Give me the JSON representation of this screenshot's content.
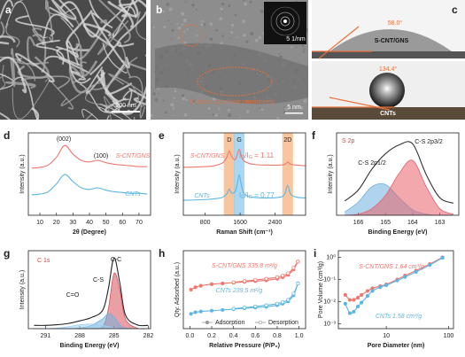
{
  "images": [
    {
      "label": "a",
      "scale_bar": "200 nm"
    },
    {
      "label": "b",
      "scale_bar": "5 nm",
      "inset_scale_bar": "5 1/nm",
      "annotation": "S-doped graphene nanosheets"
    },
    {
      "label": "c",
      "angles": [
        "58.0°",
        "134.4°"
      ],
      "samples": [
        "S-CNT/GNS",
        "CNTs"
      ]
    }
  ],
  "chart_data": [
    {
      "type": "line",
      "panel": "d",
      "xlabel": "2θ (Degree)",
      "ylabel": "Intensity (a.u.)",
      "xlim": [
        3,
        77
      ],
      "ylim": [
        0,
        10.5
      ],
      "xticks": [
        10,
        20,
        30,
        40,
        50,
        60,
        70
      ],
      "x": [
        5,
        10,
        15,
        20,
        25,
        30,
        35,
        40,
        45,
        50,
        55,
        60,
        65,
        70,
        75
      ],
      "series": [
        {
          "name": "S-CNT/GNS",
          "color": "#f0766e",
          "values": [
            6.0,
            6.1,
            6.4,
            7.4,
            8.9,
            7.8,
            7.0,
            6.8,
            7.0,
            6.7,
            6.5,
            6.4,
            6.3,
            6.2,
            6.2
          ]
        },
        {
          "name": "CNTs",
          "color": "#5bb6e6",
          "values": [
            2.6,
            2.7,
            3.0,
            4.0,
            5.2,
            4.3,
            3.5,
            3.3,
            3.5,
            3.2,
            3.0,
            2.9,
            2.8,
            2.8,
            2.7
          ]
        }
      ],
      "annotations": [
        {
          "text": "(002)",
          "color": "#222"
        },
        {
          "text": "(100)",
          "color": "#222"
        }
      ]
    },
    {
      "type": "line",
      "panel": "e",
      "xlabel": "Raman Shift (cm⁻¹)",
      "ylabel": "Intensity (a.u.)",
      "xlim": [
        300,
        3100
      ],
      "ylim": [
        0,
        11
      ],
      "xticks": [
        800,
        1600,
        2400
      ],
      "x": [
        300,
        800,
        1000,
        1200,
        1300,
        1350,
        1400,
        1480,
        1530,
        1580,
        1630,
        1700,
        1900,
        2200,
        2500,
        2620,
        2690,
        2760,
        2900,
        3100
      ],
      "bands": [
        {
          "x": 1350,
          "label": "D",
          "color": "#f7b27c"
        },
        {
          "x": 1580,
          "label": "G",
          "color": "#8ccaf0"
        },
        {
          "x": 2690,
          "label": "2D",
          "color": "#f7b27c"
        }
      ],
      "series": [
        {
          "name": "S-CNT/GNS",
          "color": "#f0766e",
          "values": [
            6.4,
            6.5,
            6.6,
            7.0,
            7.8,
            8.6,
            7.9,
            7.4,
            8.0,
            8.8,
            7.9,
            7.2,
            6.8,
            6.7,
            6.7,
            6.8,
            7.1,
            6.8,
            6.7,
            6.6
          ]
        },
        {
          "name": "CNTs",
          "color": "#5bb6e6",
          "values": [
            2.0,
            2.1,
            2.2,
            2.4,
            2.9,
            3.5,
            3.0,
            3.1,
            4.0,
            5.4,
            4.0,
            2.8,
            2.4,
            2.3,
            2.4,
            2.8,
            4.0,
            2.8,
            2.4,
            2.3
          ]
        }
      ],
      "ratio_labels": [
        [
          "I",
          "D",
          "/I",
          "G",
          " = 1.11"
        ],
        [
          "I",
          "D",
          "/I",
          "G",
          " = 0.77"
        ]
      ]
    },
    {
      "type": "line",
      "panel": "f",
      "title": "S 2p",
      "xlabel": "Binding Energy (eV)",
      "ylabel": "Intensity (a.u.)",
      "xlim": [
        166.8,
        162.3
      ],
      "ylim": [
        0,
        7.5
      ],
      "xticks": [
        166,
        165,
        164,
        163
      ],
      "x": [
        166.5,
        166,
        165.5,
        165,
        164.5,
        164,
        163.5,
        163,
        162.5
      ],
      "series": [
        {
          "color": "#333333",
          "values": [
            1.3,
            2.3,
            4.2,
            5.6,
            6.4,
            6.5,
            3.7,
            1.6,
            1.1
          ]
        },
        {
          "name": "C-S 2p1/2",
          "color": "#6fb0e0",
          "fill": true,
          "values": [
            0.3,
            1.2,
            2.6,
            2.8,
            1.6,
            0.5,
            0.1,
            0,
            0
          ]
        },
        {
          "name": "C-S 2p3/2",
          "color": "#e8606a",
          "fill": true,
          "values": [
            0,
            0.1,
            0.6,
            1.8,
            3.8,
            5.0,
            2.6,
            0.6,
            0.1
          ]
        }
      ]
    },
    {
      "type": "line",
      "panel": "g",
      "title": "C 1s",
      "xlabel": "Binding Energy (eV)",
      "ylabel": "Intensity (a.u.)",
      "xlim": [
        292.5,
        281.8
      ],
      "ylim": [
        0,
        12
      ],
      "xticks": [
        291,
        288,
        285,
        282
      ],
      "x": [
        292,
        291,
        290,
        289,
        288,
        287,
        286,
        285.5,
        285,
        284.5,
        284,
        283,
        282
      ],
      "series": [
        {
          "color": "#222222",
          "values": [
            0.5,
            0.5,
            0.6,
            0.8,
            1.2,
            1.7,
            2.8,
            6.1,
            10.9,
            7.1,
            2.1,
            0.6,
            0.5
          ]
        },
        {
          "name": "C-C",
          "color": "#d9505a",
          "fill": true,
          "values": [
            0,
            0,
            0,
            0,
            0,
            0,
            0.3,
            3,
            8.5,
            6,
            1.5,
            0.1,
            0
          ]
        },
        {
          "name": "C-S",
          "color": "#6fb0e0",
          "fill": true,
          "values": [
            0,
            0,
            0,
            0,
            0.1,
            0.5,
            1.5,
            2.3,
            1.8,
            0.6,
            0.1,
            0,
            0
          ]
        },
        {
          "name": "C=O",
          "color": "#9fd0ee",
          "fill": true,
          "values": [
            0,
            0,
            0.1,
            0.3,
            0.6,
            0.7,
            0.5,
            0.3,
            0.1,
            0,
            0,
            0,
            0
          ]
        }
      ]
    },
    {
      "type": "line",
      "panel": "h",
      "xlabel": "Relative Pressure (P/P₀)",
      "ylabel": "Qty. Adsorbed (a.u.)",
      "xlim": [
        -0.06,
        1.06
      ],
      "ylim": [
        1.0,
        11
      ],
      "xticks": [
        {
          "value": 0,
          "label": "0.0"
        },
        {
          "value": 0.2,
          "label": "0.2"
        },
        {
          "value": 0.4,
          "label": "0.4"
        },
        {
          "value": 0.6,
          "label": "0.6"
        },
        {
          "value": 0.8,
          "label": "0.8"
        },
        {
          "value": 1,
          "label": "1.0"
        }
      ],
      "x": [
        0.01,
        0.05,
        0.1,
        0.2,
        0.3,
        0.4,
        0.5,
        0.6,
        0.7,
        0.8,
        0.85,
        0.9,
        0.95,
        0.99
      ],
      "series": [
        {
          "color": "#f0766e",
          "marker": "filled",
          "values": [
            6.0,
            6.3,
            6.5,
            6.7,
            6.8,
            6.9,
            7.0,
            7.1,
            7.2,
            7.4,
            7.6,
            7.9,
            8.6,
            9.6
          ]
        },
        {
          "color": "#f0766e",
          "marker": "open",
          "values": [
            null,
            null,
            null,
            null,
            null,
            6.95,
            7.1,
            7.25,
            7.4,
            7.6,
            7.8,
            8.1,
            8.8,
            9.6
          ]
        },
        {
          "color": "#5bb6e6",
          "marker": "filled",
          "values": [
            2.9,
            3.1,
            3.2,
            3.3,
            3.4,
            3.5,
            3.6,
            3.7,
            3.8,
            4.0,
            4.2,
            4.5,
            5.3,
            6.8
          ]
        },
        {
          "color": "#5bb6e6",
          "marker": "open",
          "values": [
            null,
            null,
            null,
            null,
            null,
            3.55,
            3.7,
            3.85,
            4.0,
            4.2,
            4.4,
            4.7,
            5.5,
            6.8
          ]
        }
      ],
      "annotations": [
        {
          "text": "S-CNT/GNS  335.8 m²/g",
          "color": "#f0766e"
        },
        {
          "text": "CNTs   239.5 m²/g",
          "color": "#5bb6e6"
        }
      ],
      "legend": [
        {
          "label": "Adsorption",
          "marker": "filled"
        },
        {
          "label": "Desorption",
          "marker": "open"
        }
      ]
    },
    {
      "type": "line",
      "panel": "i",
      "xlabel": "Pore Diameter (nm)",
      "ylabel": "Pore Volume (cm³/g)",
      "log_x": true,
      "log_y": true,
      "xlim": [
        1.7,
        120
      ],
      "ylim": [
        0.0006,
        2
      ],
      "xticks": [
        10,
        100
      ],
      "yticks": [
        {
          "value": 0.001,
          "label": "10⁻³"
        },
        {
          "value": 0.01,
          "label": "10⁻²"
        },
        {
          "value": 0.1,
          "label": "10⁻¹"
        },
        {
          "value": 1,
          "label": "10⁰"
        }
      ],
      "x": [
        2.2,
        2.6,
        3,
        3.5,
        4,
        5,
        6,
        8,
        10,
        15,
        20,
        30,
        50,
        80
      ],
      "series": [
        {
          "color": "#f0766e",
          "marker": "filled",
          "values": [
            0.02,
            0.012,
            0.012,
            0.015,
            0.02,
            0.03,
            0.04,
            0.05,
            0.06,
            0.1,
            0.15,
            0.25,
            0.5,
            1.0
          ]
        },
        {
          "color": "#5bb6e6",
          "marker": "filled",
          "values": [
            0.008,
            0.003,
            0.0035,
            0.006,
            0.009,
            0.018,
            0.03,
            0.045,
            0.055,
            0.09,
            0.13,
            0.22,
            0.45,
            0.95
          ]
        }
      ],
      "annotations": [
        {
          "text": "S-CNT/GNS 1.64 cm³/g",
          "color": "#f0766e"
        },
        {
          "text": "CNTs 1.58 cm³/g",
          "color": "#5bb6e6"
        }
      ]
    }
  ]
}
